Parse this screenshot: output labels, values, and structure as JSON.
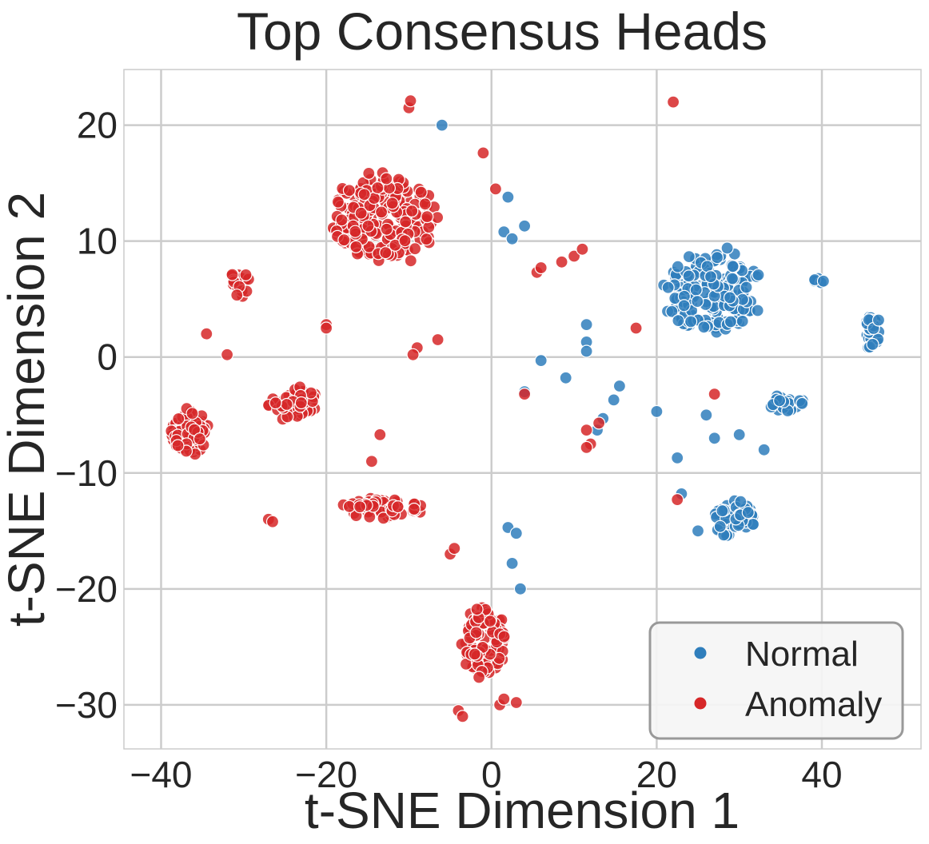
{
  "chart_data": {
    "type": "scatter",
    "title": "Top Consensus Heads",
    "xlabel": "t-SNE Dimension 1",
    "ylabel": "t-SNE Dimension 2",
    "xlim": [
      -44.5,
      52
    ],
    "ylim": [
      -33.8,
      24.8
    ],
    "xticks": [
      -40,
      -20,
      0,
      20,
      40
    ],
    "yticks": [
      -30,
      -20,
      -10,
      0,
      10,
      20
    ],
    "xtick_labels": [
      "−40",
      "−20",
      "0",
      "20",
      "40"
    ],
    "ytick_labels": [
      "−30",
      "−20",
      "−10",
      "0",
      "10",
      "20"
    ],
    "grid": true,
    "legend_position": "lower-right",
    "series": [
      {
        "name": "Normal",
        "color": "#2f7ebc",
        "clusters": [
          {
            "center": [
              27,
              5.5
            ],
            "spread": [
              6.5,
              4.2
            ],
            "count": 185,
            "seed": 11
          },
          {
            "center": [
              29.5,
              -14
            ],
            "spread": [
              3.2,
              2.0
            ],
            "count": 55,
            "seed": 12
          },
          {
            "center": [
              46,
              2.2
            ],
            "spread": [
              1.3,
              1.6
            ],
            "count": 30,
            "seed": 13
          },
          {
            "center": [
              36,
              -4.0
            ],
            "spread": [
              2.8,
              0.9
            ],
            "count": 24,
            "seed": 14
          },
          {
            "center": [
              39.5,
              6.5
            ],
            "spread": [
              1.0,
              0.5
            ],
            "count": 5,
            "seed": 15
          }
        ],
        "points": [
          [
            -6,
            20
          ],
          [
            -10,
            12.3
          ],
          [
            2,
            13.8
          ],
          [
            4,
            11.3
          ],
          [
            1.5,
            10.8
          ],
          [
            2.5,
            10.2
          ],
          [
            4,
            -3
          ],
          [
            6,
            -0.3
          ],
          [
            9,
            -1.8
          ],
          [
            11.5,
            2.8
          ],
          [
            11.5,
            1.3
          ],
          [
            11.5,
            0.5
          ],
          [
            15.5,
            -2.5
          ],
          [
            14.8,
            -3.7
          ],
          [
            13.5,
            -5.3
          ],
          [
            12.8,
            -6.3
          ],
          [
            20,
            -4.7
          ],
          [
            22.5,
            -8.7
          ],
          [
            23,
            -11.8
          ],
          [
            26,
            -5.0
          ],
          [
            27,
            -7.0
          ],
          [
            30,
            -6.7
          ],
          [
            33,
            -8.0
          ],
          [
            2,
            -14.7
          ],
          [
            3,
            -15.2
          ],
          [
            2.5,
            -17.8
          ],
          [
            3.5,
            -20.0
          ],
          [
            25,
            -15.0
          ]
        ]
      },
      {
        "name": "Anomaly",
        "color": "#d62728",
        "clusters": [
          {
            "center": [
              -13,
              12
            ],
            "spread": [
              7.5,
              4.3
            ],
            "count": 215,
            "seed": 21
          },
          {
            "center": [
              -36.5,
              -6.5
            ],
            "spread": [
              2.8,
              2.2
            ],
            "count": 75,
            "seed": 22
          },
          {
            "center": [
              -24,
              -4
            ],
            "spread": [
              3.2,
              1.6
            ],
            "count": 45,
            "seed": 23
          },
          {
            "center": [
              -30.5,
              6.3
            ],
            "spread": [
              1.4,
              1.2
            ],
            "count": 20,
            "seed": 24
          },
          {
            "center": [
              -13,
              -13
            ],
            "spread": [
              5.5,
              1.0
            ],
            "count": 60,
            "seed": 25
          },
          {
            "center": [
              -1,
              -24.5
            ],
            "spread": [
              2.8,
              3.3
            ],
            "count": 105,
            "seed": 26
          }
        ],
        "points": [
          [
            22,
            22
          ],
          [
            -10,
            21.5
          ],
          [
            -9.8,
            22.1
          ],
          [
            -1,
            17.6
          ],
          [
            0.5,
            14.5
          ],
          [
            -34.5,
            2
          ],
          [
            -32,
            0.2
          ],
          [
            -20,
            2.8
          ],
          [
            -20,
            2.5
          ],
          [
            -9,
            0.8
          ],
          [
            -9.5,
            0.2
          ],
          [
            -6.5,
            1.5
          ],
          [
            -27,
            -14
          ],
          [
            -26.5,
            -14.2
          ],
          [
            -14.5,
            -9.0
          ],
          [
            -13.5,
            -6.7
          ],
          [
            -5,
            -17
          ],
          [
            -4.5,
            -16.5
          ],
          [
            1,
            -30
          ],
          [
            1.5,
            -29.5
          ],
          [
            -4,
            -30.5
          ],
          [
            -3.5,
            -31
          ],
          [
            3,
            -29.8
          ],
          [
            5.5,
            7.3
          ],
          [
            6,
            7.7
          ],
          [
            10,
            8.7
          ],
          [
            11,
            9.3
          ],
          [
            8.5,
            8.2
          ],
          [
            11.5,
            -6.3
          ],
          [
            12,
            -7.5
          ],
          [
            11.5,
            -7.8
          ],
          [
            13,
            -5.7
          ],
          [
            17.5,
            2.5
          ],
          [
            27,
            -3.2
          ],
          [
            22.5,
            -12.3
          ],
          [
            4,
            -3.2
          ]
        ]
      }
    ],
    "legend": [
      {
        "label": "Normal",
        "color": "#2f7ebc"
      },
      {
        "label": "Anomaly",
        "color": "#d62728"
      }
    ]
  }
}
